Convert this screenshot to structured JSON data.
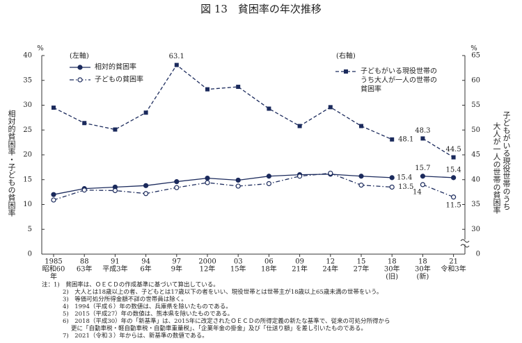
{
  "chart_data": {
    "type": "line",
    "title": "図 13　貧困率の年次推移",
    "y_label": "相対的貧困率・子どもの貧困率",
    "y2_label": [
      "子どもがいる現役世帯のうち",
      "大人が一人の世帯の貧困率"
    ],
    "y_unit": "%",
    "y2_unit": "%",
    "left_axis_note": "(左軸)",
    "right_axis_note": "(右軸)",
    "categories": [
      [
        "1985",
        "昭和60",
        "年"
      ],
      [
        "88",
        "63年"
      ],
      [
        "91",
        "平成3年"
      ],
      [
        "94",
        "6年"
      ],
      [
        "97",
        "9年"
      ],
      [
        "2000",
        "12年"
      ],
      [
        "03",
        "15年"
      ],
      [
        "06",
        "18年"
      ],
      [
        "09",
        "21年"
      ],
      [
        "12",
        "24年"
      ],
      [
        "15",
        "27年"
      ],
      [
        "18",
        "30年",
        "(旧)"
      ],
      [
        "18",
        "30年",
        "(新)"
      ],
      [
        "21",
        "令和3年"
      ]
    ],
    "break_after": 11,
    "ylim": [
      0,
      40
    ],
    "yticks": [
      0,
      5,
      10,
      15,
      20,
      25,
      30,
      35,
      40
    ],
    "y2lim": [
      25,
      65
    ],
    "y2ticks": [
      0,
      30,
      35,
      40,
      45,
      50,
      55,
      60,
      65
    ],
    "y2_axis_break": true,
    "series": [
      {
        "name": "相対的貧困率",
        "color": "#1b2a5c",
        "style": "solid",
        "marker": "filled-circle",
        "values": [
          12.0,
          13.2,
          13.5,
          13.8,
          14.6,
          15.3,
          14.9,
          15.7,
          16.0,
          16.1,
          15.7,
          15.4,
          15.7,
          15.4
        ],
        "labeled": [
          11,
          12,
          13
        ]
      },
      {
        "name": "子どもの貧困率",
        "color": "#1b2a5c",
        "style": "dashdot",
        "marker": "open-circle",
        "values": [
          10.9,
          12.9,
          12.8,
          12.2,
          13.4,
          14.4,
          13.7,
          14.2,
          15.7,
          16.3,
          13.9,
          13.5,
          14.0,
          11.5
        ],
        "labeled": [
          11,
          12,
          13
        ]
      },
      {
        "name": [
          "子どもがいる現役世帯の",
          "うち大人が一人の世帯の",
          "貧困率"
        ],
        "color": "#1b2a5c",
        "style": "dashed",
        "marker": "square",
        "axis": "y2",
        "values": [
          54.5,
          51.4,
          50.1,
          53.5,
          63.1,
          58.2,
          58.7,
          54.3,
          50.8,
          54.6,
          50.8,
          48.1,
          48.3,
          44.5
        ],
        "labeled": [
          4,
          11,
          12,
          13
        ]
      }
    ],
    "notes": [
      "注：1)　貧困率は、ＯＥＣＤの作成基準に基づいて算出している。",
      "2)　大人とは18歳以上の者、子どもとは17歳以下の者をいい、現役世帯とは世帯主が18歳以上65歳未満の世帯をいう。",
      "3)　等価可処分所得金額不詳の世帯員は除く。",
      "4)　1994（平成６）年の数値は、兵庫県を除いたものである。",
      "5)　2015（平成27）年の数値は、熊本県を除いたものである。",
      "6)　2018（平成30）年の「新基準」は、2015年に改定されたＯＥＣＤの所得定義の新たな基準で、従来の可処分所得から",
      "更に「自動車税・軽自動車税・自動車重量税」、「企業年金の掛金」及び「仕送り額」を差し引いたものである。",
      "7)　2021（令和３）年からは、新基準の数値である。"
    ]
  }
}
